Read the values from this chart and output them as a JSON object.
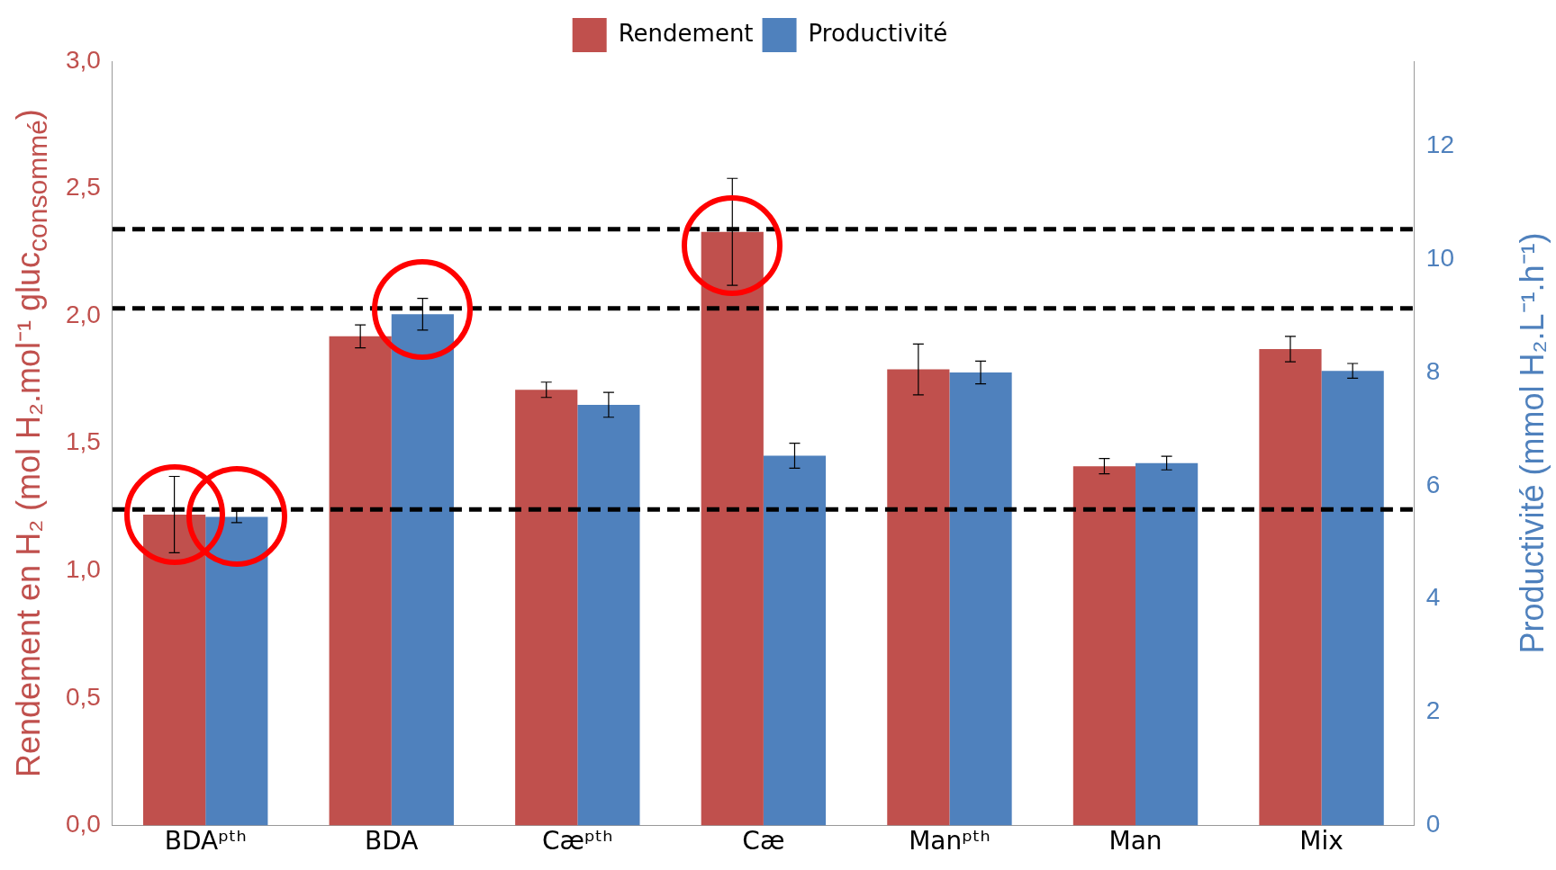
{
  "chart_data": {
    "type": "bar",
    "xlabel": null,
    "ylabel": "Rendement en H₂ (mol H₂.mol⁻¹ gluc$_{consommé}$)",
    "y2label": "Productivité (mmol H₂.L⁻¹.h⁻¹)",
    "categories": [
      "BDAᵖᵗʰ",
      "BDA",
      "Cæᵖᵗʰ",
      "Cæ",
      "Manᵖᵗʰ",
      "Man",
      "Mix"
    ],
    "series": [
      {
        "name": "Rendement",
        "color": "#c0504d",
        "values": [
          1.22,
          1.92,
          1.71,
          2.33,
          1.79,
          1.41,
          1.87
        ],
        "errors": [
          0.15,
          0.045,
          0.03,
          0.21,
          0.1,
          0.03,
          0.05
        ]
      },
      {
        "name": "Productivité",
        "color": "#4f81bd",
        "axis": "y2",
        "values": [
          5.45,
          9.03,
          7.43,
          6.53,
          8.0,
          6.4,
          8.03
        ],
        "errors": [
          0.1,
          0.28,
          0.22,
          0.22,
          0.2,
          0.12,
          0.13
        ]
      }
    ],
    "ylim": [
      0,
      3
    ],
    "yticks": [
      {
        "value": 0,
        "label": "0,0"
      },
      {
        "value": 0.5,
        "label": "0,5"
      },
      {
        "value": 1,
        "label": "1,0"
      },
      {
        "value": 1.5,
        "label": "1,5"
      },
      {
        "value": 2,
        "label": "2,0"
      },
      {
        "value": 2.5,
        "label": "2,5"
      },
      {
        "value": 3,
        "label": "3,0"
      }
    ],
    "y2lim": [
      0,
      13.5
    ],
    "y2ticks": [
      0,
      2,
      4,
      6,
      8,
      10,
      12
    ],
    "ref_lines": [
      {
        "axis": "y",
        "value": 2.34,
        "color": "#000000",
        "line_style": "dashed"
      },
      {
        "axis": "y",
        "value": 2.03,
        "color": "#000000",
        "line_style": "dashed"
      },
      {
        "axis": "y",
        "value": 1.24,
        "color": "#000000",
        "line_style": "dashed"
      }
    ],
    "legend": "top",
    "grid": false
  }
}
